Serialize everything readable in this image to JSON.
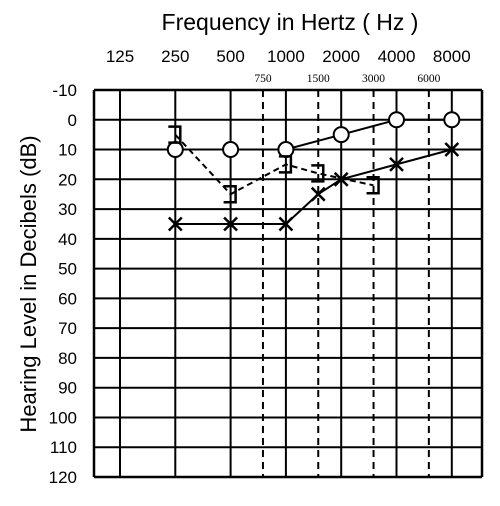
{
  "chart_data": {
    "type": "line",
    "title": "Frequency in Hertz ( Hz )",
    "xlabel": "Frequency in Hertz ( Hz )",
    "ylabel": "Hearing Level in Decibels (dB)",
    "x_major_ticks": [
      "125",
      "250",
      "500",
      "1000",
      "2000",
      "4000",
      "8000"
    ],
    "x_minor_ticks": [
      "750",
      "1500",
      "3000",
      "6000"
    ],
    "y_ticks": [
      "-10",
      "0",
      "10",
      "20",
      "30",
      "40",
      "50",
      "60",
      "70",
      "80",
      "90",
      "100",
      "110",
      "120"
    ],
    "ylim": [
      -10,
      120
    ],
    "y_inverted": true,
    "x_scale": "log",
    "grid": true,
    "series": [
      {
        "marker": "circle",
        "line_style": "solid",
        "x": [
          250,
          500,
          1000,
          2000,
          4000,
          8000
        ],
        "values": [
          10,
          10,
          10,
          5,
          0,
          0
        ]
      },
      {
        "marker": "cross",
        "line_style": "solid",
        "x": [
          250,
          500,
          1000,
          1500,
          2000,
          4000,
          8000
        ],
        "values": [
          35,
          35,
          35,
          25,
          20,
          15,
          10
        ]
      },
      {
        "marker": "bracket",
        "line_style": "dashed",
        "x": [
          250,
          500,
          1000,
          1500,
          3000
        ],
        "values": [
          5,
          25,
          15,
          18,
          22
        ]
      }
    ]
  }
}
